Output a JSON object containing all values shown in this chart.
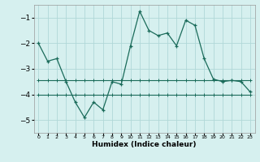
{
  "xlabel": "Humidex (Indice chaleur)",
  "x": [
    0,
    1,
    2,
    3,
    4,
    5,
    6,
    7,
    8,
    9,
    10,
    11,
    12,
    13,
    14,
    15,
    16,
    17,
    18,
    19,
    20,
    21,
    22,
    23
  ],
  "line1": [
    -2.0,
    -2.7,
    -2.6,
    -3.5,
    -4.3,
    -4.9,
    -4.3,
    -4.6,
    -3.5,
    -3.6,
    -2.1,
    -0.75,
    -1.5,
    -1.7,
    -1.6,
    -2.1,
    -1.1,
    -1.3,
    -2.6,
    -3.4,
    -3.5,
    -3.45,
    -3.5,
    -3.9
  ],
  "line2": [
    -3.45,
    -3.45,
    -3.45,
    -3.45,
    -3.45,
    -3.45,
    -3.45,
    -3.45,
    -3.45,
    -3.45,
    -3.45,
    -3.45,
    -3.45,
    -3.45,
    -3.45,
    -3.45,
    -3.45,
    -3.45,
    -3.45,
    -3.45,
    -3.45,
    -3.45,
    -3.45,
    -3.45
  ],
  "line3": [
    -4.0,
    -4.0,
    -4.0,
    -4.0,
    -4.0,
    -4.0,
    -4.0,
    -4.0,
    -4.0,
    -4.0,
    -4.0,
    -4.0,
    -4.0,
    -4.0,
    -4.0,
    -4.0,
    -4.0,
    -4.0,
    -4.0,
    -4.0,
    -4.0,
    -4.0,
    -4.0,
    -4.0
  ],
  "line_color": "#1a6b5a",
  "bg_color": "#d6f0ef",
  "grid_color": "#b0d8d8",
  "ylim": [
    -5.5,
    -0.5
  ],
  "yticks": [
    -5,
    -4,
    -3,
    -2,
    -1
  ],
  "xlim": [
    -0.5,
    23.5
  ]
}
